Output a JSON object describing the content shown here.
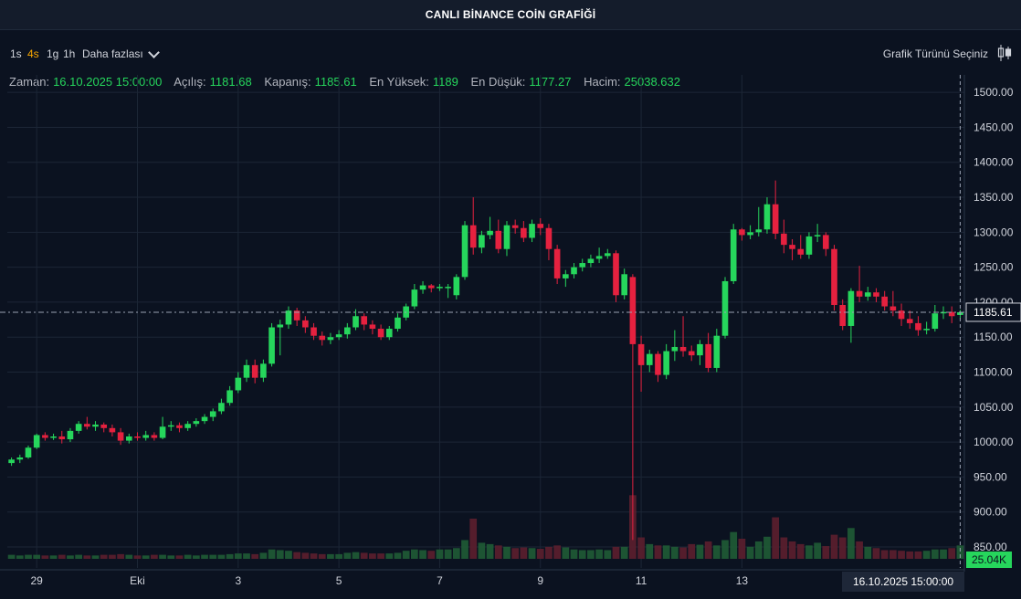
{
  "header": {
    "title": "CANLI BİNANCE COİN GRAFİĞİ"
  },
  "toolbar": {
    "timeframes": [
      "1s",
      "4s",
      "1g",
      "1h"
    ],
    "active_timeframe": "4s",
    "more_label": "Daha fazlası",
    "chart_type_label": "Grafik Türünü Seçiniz"
  },
  "ohlc": {
    "zaman_label": "Zaman:",
    "zaman": "16.10.2025 15:00:00",
    "acilis_label": "Açılış:",
    "acilis": "1181.68",
    "kapanis_label": "Kapanış:",
    "kapanis": "1185.61",
    "yuksek_label": "En Yüksek:",
    "yuksek": "1189",
    "dusuk_label": "En Düşük:",
    "dusuk": "1177.27",
    "hacim_label": "Hacim:",
    "hacim": "25038.632"
  },
  "colors": {
    "up": "#26d65c",
    "down": "#e5213f",
    "grid": "#1c2636",
    "background": "#0b1220",
    "axis_text": "#d1d4dc"
  },
  "chart_data": {
    "type": "candlestick",
    "yticks": [
      "1500.00",
      "1450.00",
      "1400.00",
      "1350.00",
      "1300.00",
      "1250.00",
      "1200.00",
      "1150.00",
      "1100.00",
      "1050.00",
      "1000.00",
      "950.00",
      "900.00",
      "850.00"
    ],
    "ylim": [
      820,
      1525
    ],
    "xticks": [
      {
        "label": "29",
        "i": 3
      },
      {
        "label": "Eki",
        "i": 15
      },
      {
        "label": "3",
        "i": 27
      },
      {
        "label": "5",
        "i": 39
      },
      {
        "label": "7",
        "i": 51
      },
      {
        "label": "9",
        "i": 63
      },
      {
        "label": "11",
        "i": 75
      },
      {
        "label": "13",
        "i": 87
      }
    ],
    "crosshair_date": "16.10.2025  15:00:00",
    "last_price": "1185.61",
    "last_volume": "25.04K",
    "volume_max": 60,
    "candles": [
      [
        970,
        975,
        966,
        978
      ],
      [
        975,
        978,
        970,
        982
      ],
      [
        978,
        992,
        976,
        995
      ],
      [
        992,
        1010,
        990,
        1012
      ],
      [
        1010,
        1006,
        1002,
        1014
      ],
      [
        1006,
        1008,
        1003,
        1012
      ],
      [
        1008,
        1004,
        998,
        1016
      ],
      [
        1004,
        1016,
        1000,
        1020
      ],
      [
        1016,
        1026,
        1012,
        1030
      ],
      [
        1026,
        1022,
        1018,
        1036
      ],
      [
        1022,
        1025,
        1016,
        1030
      ],
      [
        1025,
        1020,
        1014,
        1028
      ],
      [
        1020,
        1014,
        1008,
        1025
      ],
      [
        1014,
        1002,
        996,
        1020
      ],
      [
        1002,
        1008,
        998,
        1012
      ],
      [
        1008,
        1006,
        1002,
        1014
      ],
      [
        1006,
        1010,
        1002,
        1016
      ],
      [
        1010,
        1006,
        1002,
        1014
      ],
      [
        1006,
        1022,
        1004,
        1036
      ],
      [
        1022,
        1024,
        1016,
        1030
      ],
      [
        1024,
        1020,
        1014,
        1028
      ],
      [
        1020,
        1026,
        1016,
        1030
      ],
      [
        1026,
        1030,
        1022,
        1034
      ],
      [
        1030,
        1036,
        1026,
        1040
      ],
      [
        1036,
        1044,
        1030,
        1048
      ],
      [
        1044,
        1056,
        1040,
        1062
      ],
      [
        1056,
        1074,
        1052,
        1080
      ],
      [
        1074,
        1092,
        1070,
        1100
      ],
      [
        1092,
        1110,
        1086,
        1118
      ],
      [
        1110,
        1092,
        1084,
        1118
      ],
      [
        1092,
        1112,
        1086,
        1118
      ],
      [
        1112,
        1164,
        1108,
        1170
      ],
      [
        1164,
        1168,
        1124,
        1175
      ],
      [
        1168,
        1188,
        1162,
        1194
      ],
      [
        1188,
        1174,
        1166,
        1192
      ],
      [
        1174,
        1164,
        1156,
        1180
      ],
      [
        1164,
        1152,
        1146,
        1170
      ],
      [
        1152,
        1146,
        1138,
        1158
      ],
      [
        1146,
        1150,
        1140,
        1156
      ],
      [
        1150,
        1154,
        1146,
        1160
      ],
      [
        1154,
        1164,
        1148,
        1170
      ],
      [
        1164,
        1180,
        1160,
        1190
      ],
      [
        1180,
        1168,
        1160,
        1184
      ],
      [
        1168,
        1162,
        1154,
        1174
      ],
      [
        1162,
        1150,
        1146,
        1168
      ],
      [
        1150,
        1162,
        1146,
        1166
      ],
      [
        1162,
        1178,
        1158,
        1184
      ],
      [
        1178,
        1194,
        1174,
        1198
      ],
      [
        1194,
        1218,
        1190,
        1226
      ],
      [
        1218,
        1224,
        1212,
        1230
      ],
      [
        1224,
        1220,
        1214,
        1226
      ],
      [
        1220,
        1222,
        1216,
        1226
      ],
      [
        1222,
        1222,
        1206,
        1226
      ],
      [
        1210,
        1236,
        1204,
        1240
      ],
      [
        1236,
        1310,
        1232,
        1316
      ],
      [
        1310,
        1278,
        1268,
        1350
      ],
      [
        1278,
        1296,
        1270,
        1302
      ],
      [
        1296,
        1302,
        1290,
        1322
      ],
      [
        1302,
        1276,
        1270,
        1318
      ],
      [
        1276,
        1310,
        1266,
        1316
      ],
      [
        1310,
        1306,
        1298,
        1318
      ],
      [
        1306,
        1292,
        1286,
        1316
      ],
      [
        1292,
        1312,
        1286,
        1318
      ],
      [
        1312,
        1306,
        1296,
        1320
      ],
      [
        1306,
        1276,
        1260,
        1312
      ],
      [
        1276,
        1234,
        1226,
        1282
      ],
      [
        1234,
        1240,
        1222,
        1246
      ],
      [
        1240,
        1250,
        1234,
        1256
      ],
      [
        1250,
        1256,
        1244,
        1262
      ],
      [
        1256,
        1262,
        1250,
        1268
      ],
      [
        1262,
        1266,
        1256,
        1278
      ],
      [
        1266,
        1270,
        1262,
        1276
      ],
      [
        1270,
        1210,
        1200,
        1274
      ],
      [
        1210,
        1240,
        1204,
        1248
      ],
      [
        1236,
        1140,
        860,
        1240
      ],
      [
        1140,
        1110,
        1072,
        1152
      ],
      [
        1110,
        1126,
        1100,
        1132
      ],
      [
        1126,
        1096,
        1086,
        1130
      ],
      [
        1096,
        1130,
        1090,
        1140
      ],
      [
        1130,
        1136,
        1116,
        1160
      ],
      [
        1136,
        1130,
        1122,
        1180
      ],
      [
        1130,
        1124,
        1116,
        1138
      ],
      [
        1124,
        1140,
        1110,
        1146
      ],
      [
        1140,
        1106,
        1100,
        1156
      ],
      [
        1106,
        1152,
        1100,
        1162
      ],
      [
        1152,
        1230,
        1148,
        1236
      ],
      [
        1230,
        1304,
        1226,
        1312
      ],
      [
        1304,
        1296,
        1288,
        1306
      ],
      [
        1296,
        1300,
        1290,
        1310
      ],
      [
        1300,
        1304,
        1294,
        1336
      ],
      [
        1304,
        1340,
        1298,
        1350
      ],
      [
        1340,
        1298,
        1290,
        1374
      ],
      [
        1298,
        1282,
        1270,
        1318
      ],
      [
        1282,
        1276,
        1260,
        1290
      ],
      [
        1276,
        1268,
        1262,
        1296
      ],
      [
        1268,
        1294,
        1262,
        1300
      ],
      [
        1294,
        1296,
        1286,
        1312
      ],
      [
        1296,
        1276,
        1266,
        1300
      ],
      [
        1276,
        1196,
        1188,
        1282
      ],
      [
        1196,
        1166,
        1160,
        1204
      ],
      [
        1166,
        1216,
        1142,
        1220
      ],
      [
        1216,
        1208,
        1200,
        1252
      ],
      [
        1208,
        1214,
        1202,
        1222
      ],
      [
        1214,
        1208,
        1200,
        1220
      ],
      [
        1208,
        1194,
        1188,
        1216
      ],
      [
        1194,
        1188,
        1180,
        1216
      ],
      [
        1188,
        1176,
        1166,
        1198
      ],
      [
        1176,
        1170,
        1162,
        1188
      ],
      [
        1170,
        1160,
        1152,
        1180
      ],
      [
        1160,
        1162,
        1154,
        1172
      ],
      [
        1162,
        1184,
        1158,
        1196
      ],
      [
        1184,
        1186,
        1176,
        1194
      ],
      [
        1186,
        1180,
        1170,
        1194
      ],
      [
        1181.68,
        1185.61,
        1177.27,
        1189
      ]
    ],
    "volumes": [
      6,
      5,
      6,
      6,
      5,
      5,
      6,
      5,
      6,
      5,
      5,
      6,
      6,
      7,
      6,
      5,
      5,
      6,
      6,
      5,
      5,
      6,
      5,
      6,
      6,
      6,
      7,
      8,
      8,
      7,
      9,
      14,
      13,
      12,
      10,
      9,
      8,
      7,
      7,
      7,
      9,
      10,
      9,
      8,
      8,
      8,
      9,
      12,
      14,
      13,
      12,
      14,
      14,
      16,
      28,
      60,
      24,
      22,
      20,
      18,
      16,
      17,
      16,
      15,
      18,
      20,
      17,
      14,
      13,
      13,
      14,
      13,
      18,
      18,
      95,
      32,
      22,
      20,
      20,
      18,
      17,
      22,
      21,
      26,
      20,
      28,
      40,
      30,
      18,
      26,
      33,
      62,
      32,
      26,
      22,
      20,
      24,
      19,
      36,
      32,
      46,
      26,
      18,
      16,
      13,
      13,
      12,
      11,
      11,
      12,
      14,
      14,
      16,
      20
    ]
  }
}
